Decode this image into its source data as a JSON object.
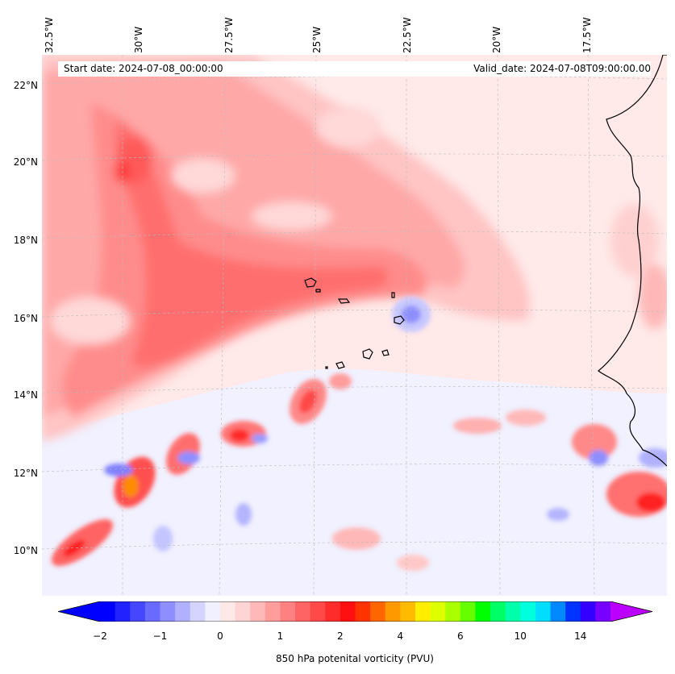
{
  "map": {
    "start_label": "Start date: 2024-07-08_00:00:00",
    "valid_label": "Valid_date: 2024-07-08T09:00:00.00",
    "lon_labels": [
      "32.5°W",
      "30°W",
      "27.5°W",
      "25°W",
      "22.5°W",
      "20°W",
      "17.5°W"
    ],
    "lat_labels": [
      "22°N",
      "20°N",
      "18°N",
      "16°N",
      "14°N",
      "12°N",
      "10°N"
    ],
    "field": "850 hPa potential vorticity",
    "region": "Cabo Verde and West African coast"
  },
  "colorbar": {
    "label": "850 hPa potenital vorticity (PVU)",
    "tick_labels": [
      "−2",
      "−1",
      "0",
      "1",
      "2",
      "4",
      "6",
      "10",
      "14"
    ],
    "colors": [
      "#0000ff",
      "#2222ff",
      "#4646ff",
      "#6a6aff",
      "#8e8eff",
      "#b0b0ff",
      "#d4d4ff",
      "#f0f0ff",
      "#ffe8e8",
      "#ffd4d4",
      "#ffb8b8",
      "#ff9c9c",
      "#ff8080",
      "#ff6464",
      "#ff4848",
      "#ff2c2c",
      "#ff1010",
      "#ff3300",
      "#ff6600",
      "#ff9900",
      "#ffbb00",
      "#ffee00",
      "#ddff00",
      "#aaff00",
      "#66ff00",
      "#00ff00",
      "#00ff66",
      "#00ffaa",
      "#00ffdd",
      "#00ddff",
      "#0088ff",
      "#0033ff",
      "#3300ff",
      "#7700ff"
    ],
    "under_color": "#0000ff",
    "over_color": "#bb00ff"
  }
}
